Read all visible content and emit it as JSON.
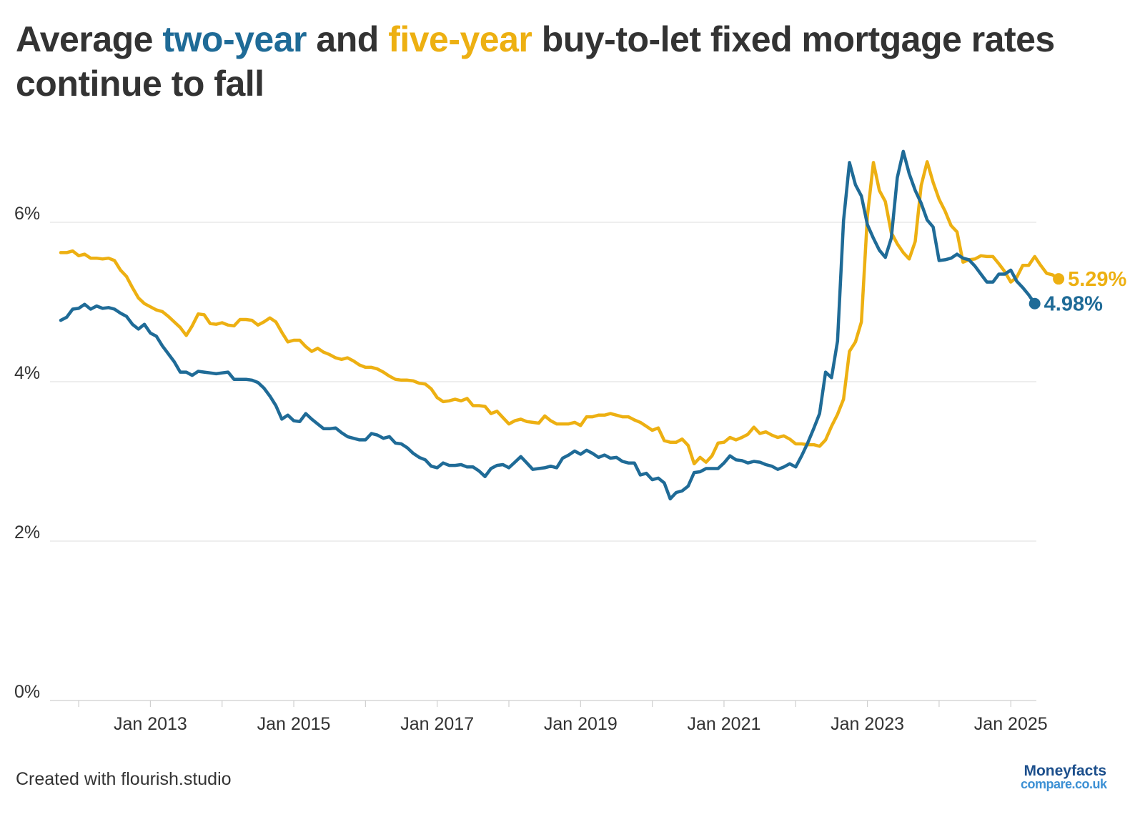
{
  "title": {
    "prefix": "Average ",
    "series_a": "two-year",
    "middle": " and ",
    "series_b": "five-year",
    "suffix": " buy-to-let fixed mortgage rates continue to fall"
  },
  "footer": "Created with flourish.studio",
  "logo": {
    "line1": "Moneyfacts",
    "line2": "compare.co.uk"
  },
  "colors": {
    "two_year": "#1f6b97",
    "five_year": "#edb012",
    "grid": "#e3e3e3",
    "text": "#333333"
  },
  "chart_data": {
    "type": "line",
    "x_start": "2011-10",
    "x_frequency": "monthly",
    "x_ticks": [
      "Jan 2013",
      "Jan 2015",
      "Jan 2017",
      "Jan 2019",
      "Jan 2021",
      "Jan 2023",
      "Jan 2025"
    ],
    "y_ticks": [
      "0%",
      "2%",
      "4%",
      "6%"
    ],
    "ylim": [
      0,
      6
    ],
    "grid": true,
    "series": [
      {
        "name": "two-year",
        "end_label": "4.98%",
        "values": [
          4.77,
          4.81,
          4.91,
          4.92,
          4.97,
          4.91,
          4.95,
          4.92,
          4.93,
          4.91,
          4.86,
          4.82,
          4.72,
          4.66,
          4.72,
          4.61,
          4.57,
          4.45,
          4.35,
          4.25,
          4.12,
          4.12,
          4.08,
          4.13,
          4.12,
          4.11,
          4.1,
          4.11,
          4.12,
          4.03,
          4.03,
          4.03,
          4.02,
          3.99,
          3.92,
          3.82,
          3.7,
          3.53,
          3.58,
          3.51,
          3.5,
          3.6,
          3.53,
          3.47,
          3.41,
          3.41,
          3.42,
          3.36,
          3.31,
          3.29,
          3.27,
          3.27,
          3.35,
          3.33,
          3.29,
          3.31,
          3.23,
          3.22,
          3.17,
          3.1,
          3.05,
          3.02,
          2.94,
          2.92,
          2.98,
          2.95,
          2.95,
          2.96,
          2.93,
          2.93,
          2.88,
          2.81,
          2.91,
          2.95,
          2.96,
          2.92,
          2.99,
          3.06,
          2.98,
          2.9,
          2.91,
          2.92,
          2.94,
          2.92,
          3.04,
          3.08,
          3.13,
          3.09,
          3.14,
          3.1,
          3.05,
          3.08,
          3.04,
          3.05,
          3.0,
          2.98,
          2.98,
          2.83,
          2.85,
          2.77,
          2.79,
          2.73,
          2.53,
          2.61,
          2.63,
          2.69,
          2.86,
          2.87,
          2.91,
          2.91,
          2.91,
          2.98,
          3.07,
          3.02,
          3.01,
          2.98,
          3.0,
          2.99,
          2.96,
          2.94,
          2.9,
          2.93,
          2.97,
          2.93,
          3.07,
          3.23,
          3.41,
          3.6,
          4.12,
          4.05,
          4.51,
          6.02,
          6.75,
          6.47,
          6.33,
          5.97,
          5.8,
          5.65,
          5.56,
          5.8,
          6.56,
          6.89,
          6.61,
          6.4,
          6.24,
          6.03,
          5.94,
          5.52,
          5.53,
          5.55,
          5.6,
          5.55,
          5.53,
          5.45,
          5.35,
          5.25,
          5.25,
          5.35,
          5.35,
          5.4,
          5.26,
          5.18,
          5.09,
          4.98
        ]
      },
      {
        "name": "five-year",
        "end_label": "5.29%",
        "values": [
          5.62,
          5.62,
          5.64,
          5.58,
          5.6,
          5.55,
          5.55,
          5.54,
          5.55,
          5.52,
          5.4,
          5.32,
          5.18,
          5.05,
          4.98,
          4.94,
          4.9,
          4.88,
          4.82,
          4.75,
          4.68,
          4.58,
          4.7,
          4.85,
          4.84,
          4.73,
          4.72,
          4.74,
          4.71,
          4.7,
          4.78,
          4.78,
          4.77,
          4.71,
          4.75,
          4.8,
          4.75,
          4.62,
          4.5,
          4.52,
          4.52,
          4.44,
          4.38,
          4.42,
          4.37,
          4.34,
          4.3,
          4.28,
          4.3,
          4.26,
          4.21,
          4.18,
          4.18,
          4.16,
          4.12,
          4.07,
          4.03,
          4.02,
          4.02,
          4.01,
          3.98,
          3.97,
          3.91,
          3.8,
          3.75,
          3.76,
          3.78,
          3.76,
          3.79,
          3.7,
          3.7,
          3.69,
          3.6,
          3.63,
          3.55,
          3.47,
          3.51,
          3.53,
          3.5,
          3.49,
          3.48,
          3.57,
          3.51,
          3.47,
          3.47,
          3.47,
          3.49,
          3.45,
          3.56,
          3.56,
          3.58,
          3.58,
          3.6,
          3.58,
          3.56,
          3.56,
          3.52,
          3.49,
          3.44,
          3.39,
          3.42,
          3.26,
          3.24,
          3.24,
          3.28,
          3.2,
          2.97,
          3.05,
          2.99,
          3.07,
          3.23,
          3.24,
          3.3,
          3.27,
          3.3,
          3.34,
          3.43,
          3.35,
          3.37,
          3.33,
          3.3,
          3.32,
          3.28,
          3.22,
          3.22,
          3.21,
          3.21,
          3.19,
          3.27,
          3.44,
          3.59,
          3.78,
          4.38,
          4.5,
          4.75,
          6.08,
          6.75,
          6.4,
          6.26,
          5.87,
          5.73,
          5.62,
          5.54,
          5.76,
          6.46,
          6.76,
          6.5,
          6.29,
          6.14,
          5.96,
          5.88,
          5.5,
          5.53,
          5.54,
          5.58,
          5.57,
          5.57,
          5.48,
          5.38,
          5.25,
          5.31,
          5.46,
          5.46,
          5.57,
          5.46,
          5.36,
          5.34,
          5.29
        ]
      }
    ]
  }
}
